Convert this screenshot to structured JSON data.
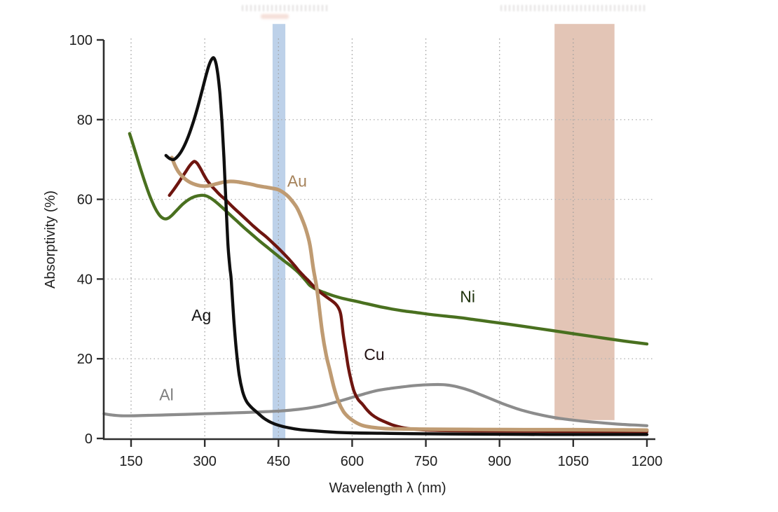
{
  "chart_data": {
    "type": "line",
    "title": "",
    "xlabel": "Wavelength λ (nm)",
    "ylabel": "Absorptivity (%)",
    "xlim": [
      93,
      1217
    ],
    "ylim": [
      0,
      100
    ],
    "x_ticks": [
      150,
      300,
      450,
      600,
      750,
      900,
      1050,
      1200
    ],
    "y_ticks": [
      0,
      20,
      40,
      60,
      80,
      100
    ],
    "grid": {
      "style": "dotted",
      "vertical_at": [
        150,
        300,
        450,
        600,
        750,
        900,
        1050
      ],
      "horizontal_at": [
        20,
        40,
        60,
        80
      ]
    },
    "legend": "inline-series-labels",
    "bands": [
      {
        "name": "blue-laser-wavelength-band",
        "x0": 438,
        "x1": 464,
        "color": "#b9cfe8",
        "top_pct": 104,
        "bottom_pct": 0
      },
      {
        "name": "ir-laser-wavelength-band",
        "x0": 1012,
        "x1": 1134,
        "color": "#e1c2b2",
        "top_pct": 104,
        "bottom_pct": 4.6
      }
    ],
    "series": [
      {
        "name": "Al",
        "color": "#8c8c8c",
        "label_color": "#7d7d7d",
        "label_at": {
          "x": 222,
          "y": 11.0
        },
        "width": 4.2,
        "points": [
          [
            95,
            6.2
          ],
          [
            110,
            5.9
          ],
          [
            130,
            5.7
          ],
          [
            155,
            5.7
          ],
          [
            185,
            5.8
          ],
          [
            220,
            5.9
          ],
          [
            260,
            6.05
          ],
          [
            300,
            6.2
          ],
          [
            340,
            6.35
          ],
          [
            380,
            6.5
          ],
          [
            420,
            6.7
          ],
          [
            455,
            6.9
          ],
          [
            490,
            7.3
          ],
          [
            520,
            7.8
          ],
          [
            548,
            8.5
          ],
          [
            575,
            9.4
          ],
          [
            600,
            10.3
          ],
          [
            625,
            11.2
          ],
          [
            650,
            12.0
          ],
          [
            675,
            12.5
          ],
          [
            700,
            12.9
          ],
          [
            730,
            13.3
          ],
          [
            760,
            13.5
          ],
          [
            785,
            13.5
          ],
          [
            805,
            13.2
          ],
          [
            825,
            12.6
          ],
          [
            845,
            11.8
          ],
          [
            865,
            10.8
          ],
          [
            885,
            9.8
          ],
          [
            905,
            8.8
          ],
          [
            925,
            7.9
          ],
          [
            945,
            7.1
          ],
          [
            970,
            6.3
          ],
          [
            1000,
            5.5
          ],
          [
            1030,
            4.9
          ],
          [
            1065,
            4.4
          ],
          [
            1100,
            4.0
          ],
          [
            1140,
            3.6
          ],
          [
            1170,
            3.4
          ],
          [
            1200,
            3.2
          ]
        ]
      },
      {
        "name": "Ni",
        "color": "#49701f",
        "label_color": "#1f330d",
        "label_at": {
          "x": 835,
          "y": 35.6
        },
        "width": 4.4,
        "points": [
          [
            147,
            76.5
          ],
          [
            153,
            74.2
          ],
          [
            161,
            71.0
          ],
          [
            170,
            67.4
          ],
          [
            179,
            64.0
          ],
          [
            188,
            60.9
          ],
          [
            197,
            58.3
          ],
          [
            205,
            56.5
          ],
          [
            212,
            55.5
          ],
          [
            219,
            55.1
          ],
          [
            226,
            55.3
          ],
          [
            234,
            56.1
          ],
          [
            244,
            57.4
          ],
          [
            256,
            58.9
          ],
          [
            268,
            60.0
          ],
          [
            280,
            60.7
          ],
          [
            292,
            61.0
          ],
          [
            302,
            60.9
          ],
          [
            312,
            60.3
          ],
          [
            323,
            59.3
          ],
          [
            336,
            57.9
          ],
          [
            350,
            56.3
          ],
          [
            365,
            54.6
          ],
          [
            380,
            52.9
          ],
          [
            396,
            51.2
          ],
          [
            412,
            49.5
          ],
          [
            428,
            47.9
          ],
          [
            444,
            46.3
          ],
          [
            460,
            44.7
          ],
          [
            476,
            43.2
          ],
          [
            490,
            41.7
          ],
          [
            505,
            39.7
          ],
          [
            514,
            38.4
          ],
          [
            524,
            37.6
          ],
          [
            535,
            37.0
          ],
          [
            548,
            36.4
          ],
          [
            562,
            35.8
          ],
          [
            582,
            35.1
          ],
          [
            605,
            34.5
          ],
          [
            630,
            33.8
          ],
          [
            655,
            33.1
          ],
          [
            680,
            32.5
          ],
          [
            705,
            32.0
          ],
          [
            730,
            31.6
          ],
          [
            760,
            31.1
          ],
          [
            790,
            30.7
          ],
          [
            820,
            30.3
          ],
          [
            850,
            29.8
          ],
          [
            880,
            29.3
          ],
          [
            910,
            28.8
          ],
          [
            950,
            28.1
          ],
          [
            1000,
            27.2
          ],
          [
            1050,
            26.3
          ],
          [
            1100,
            25.4
          ],
          [
            1150,
            24.5
          ],
          [
            1200,
            23.7
          ]
        ]
      },
      {
        "name": "Cu",
        "color": "#6e150f",
        "label_color": "#201011",
        "label_at": {
          "x": 645,
          "y": 21.1
        },
        "width": 4.4,
        "points": [
          [
            228,
            61.0
          ],
          [
            236,
            62.3
          ],
          [
            244,
            63.7
          ],
          [
            252,
            65.2
          ],
          [
            260,
            66.7
          ],
          [
            268,
            68.2
          ],
          [
            274,
            69.1
          ],
          [
            279,
            69.5
          ],
          [
            284,
            69.1
          ],
          [
            290,
            68.0
          ],
          [
            297,
            66.4
          ],
          [
            304,
            64.9
          ],
          [
            312,
            63.6
          ],
          [
            321,
            62.4
          ],
          [
            331,
            61.1
          ],
          [
            343,
            59.8
          ],
          [
            356,
            58.2
          ],
          [
            370,
            56.6
          ],
          [
            384,
            55.0
          ],
          [
            398,
            53.4
          ],
          [
            412,
            51.9
          ],
          [
            425,
            50.6
          ],
          [
            438,
            49.1
          ],
          [
            450,
            47.7
          ],
          [
            462,
            46.2
          ],
          [
            472,
            44.9
          ],
          [
            482,
            43.5
          ],
          [
            492,
            42.0
          ],
          [
            502,
            40.7
          ],
          [
            511,
            39.6
          ],
          [
            520,
            38.4
          ],
          [
            530,
            37.2
          ],
          [
            540,
            36.2
          ],
          [
            550,
            35.3
          ],
          [
            558,
            34.6
          ],
          [
            566,
            33.8
          ],
          [
            572,
            32.8
          ],
          [
            577,
            31.0
          ],
          [
            582,
            26.0
          ],
          [
            587,
            22.0
          ],
          [
            592,
            18.0
          ],
          [
            598,
            14.5
          ],
          [
            604,
            11.8
          ],
          [
            612,
            9.8
          ],
          [
            621,
            8.6
          ],
          [
            630,
            7.2
          ],
          [
            640,
            6.0
          ],
          [
            652,
            5.0
          ],
          [
            666,
            4.2
          ],
          [
            682,
            3.4
          ],
          [
            700,
            2.8
          ],
          [
            720,
            2.4
          ],
          [
            750,
            2.1
          ],
          [
            800,
            1.95
          ],
          [
            900,
            1.85
          ],
          [
            1000,
            1.8
          ],
          [
            1100,
            1.75
          ],
          [
            1200,
            1.7
          ]
        ]
      },
      {
        "name": "Au",
        "color": "#bf9b72",
        "label_color": "#a5825a",
        "label_at": {
          "x": 488,
          "y": 64.6
        },
        "width": 5.2,
        "points": [
          [
            233,
            70.5
          ],
          [
            239,
            68.6
          ],
          [
            246,
            67.0
          ],
          [
            254,
            65.8
          ],
          [
            262,
            64.9
          ],
          [
            271,
            64.2
          ],
          [
            281,
            63.7
          ],
          [
            291,
            63.4
          ],
          [
            301,
            63.3
          ],
          [
            312,
            63.5
          ],
          [
            324,
            63.9
          ],
          [
            338,
            64.3
          ],
          [
            352,
            64.5
          ],
          [
            366,
            64.4
          ],
          [
            380,
            64.1
          ],
          [
            394,
            63.8
          ],
          [
            408,
            63.4
          ],
          [
            422,
            63.1
          ],
          [
            436,
            62.8
          ],
          [
            450,
            62.4
          ],
          [
            460,
            61.7
          ],
          [
            470,
            60.7
          ],
          [
            479,
            59.4
          ],
          [
            488,
            57.8
          ],
          [
            497,
            55.4
          ],
          [
            506,
            52.4
          ],
          [
            514,
            48.6
          ],
          [
            521,
            42.6
          ],
          [
            527,
            38.5
          ],
          [
            531,
            34.9
          ],
          [
            539,
            26.8
          ],
          [
            547,
            21.0
          ],
          [
            554,
            17.4
          ],
          [
            563,
            12.8
          ],
          [
            572,
            9.3
          ],
          [
            582,
            6.8
          ],
          [
            592,
            5.4
          ],
          [
            605,
            4.2
          ],
          [
            620,
            3.3
          ],
          [
            640,
            2.8
          ],
          [
            665,
            2.5
          ],
          [
            700,
            2.4
          ],
          [
            760,
            2.3
          ],
          [
            850,
            2.25
          ],
          [
            950,
            2.2
          ],
          [
            1050,
            2.2
          ],
          [
            1130,
            2.15
          ],
          [
            1200,
            2.1
          ]
        ]
      },
      {
        "name": "Ag",
        "color": "#0f0f0f",
        "label_color": "#141414",
        "label_at": {
          "x": 293,
          "y": 30.9
        },
        "width": 4.4,
        "points": [
          [
            221,
            71.0
          ],
          [
            229,
            70.2
          ],
          [
            237,
            70.0
          ],
          [
            245,
            70.8
          ],
          [
            254,
            72.4
          ],
          [
            264,
            75.0
          ],
          [
            274,
            78.4
          ],
          [
            284,
            82.4
          ],
          [
            294,
            87.0
          ],
          [
            302,
            90.8
          ],
          [
            309,
            93.8
          ],
          [
            315,
            95.3
          ],
          [
            319,
            95.4
          ],
          [
            323,
            94.0
          ],
          [
            327,
            91.0
          ],
          [
            331,
            86.4
          ],
          [
            335,
            79.5
          ],
          [
            339,
            70.5
          ],
          [
            343,
            59.5
          ],
          [
            347,
            49.0
          ],
          [
            351,
            43.0
          ],
          [
            354,
            39.6
          ],
          [
            359,
            30.0
          ],
          [
            364,
            22.5
          ],
          [
            370,
            16.0
          ],
          [
            377,
            11.8
          ],
          [
            385,
            9.3
          ],
          [
            395,
            7.8
          ],
          [
            405,
            6.7
          ],
          [
            420,
            5.1
          ],
          [
            435,
            4.0
          ],
          [
            450,
            3.3
          ],
          [
            470,
            2.7
          ],
          [
            495,
            2.2
          ],
          [
            525,
            1.9
          ],
          [
            560,
            1.6
          ],
          [
            600,
            1.4
          ],
          [
            660,
            1.3
          ],
          [
            720,
            1.2
          ],
          [
            820,
            1.1
          ],
          [
            1000,
            1.0
          ],
          [
            1200,
            1.0
          ]
        ]
      }
    ],
    "colors": {
      "axis": "#2e2e2e",
      "tick_text": "#1d1d1d",
      "grid_vertical": "#9e9e9e",
      "grid_horizontal": "#b3b3b3"
    }
  }
}
